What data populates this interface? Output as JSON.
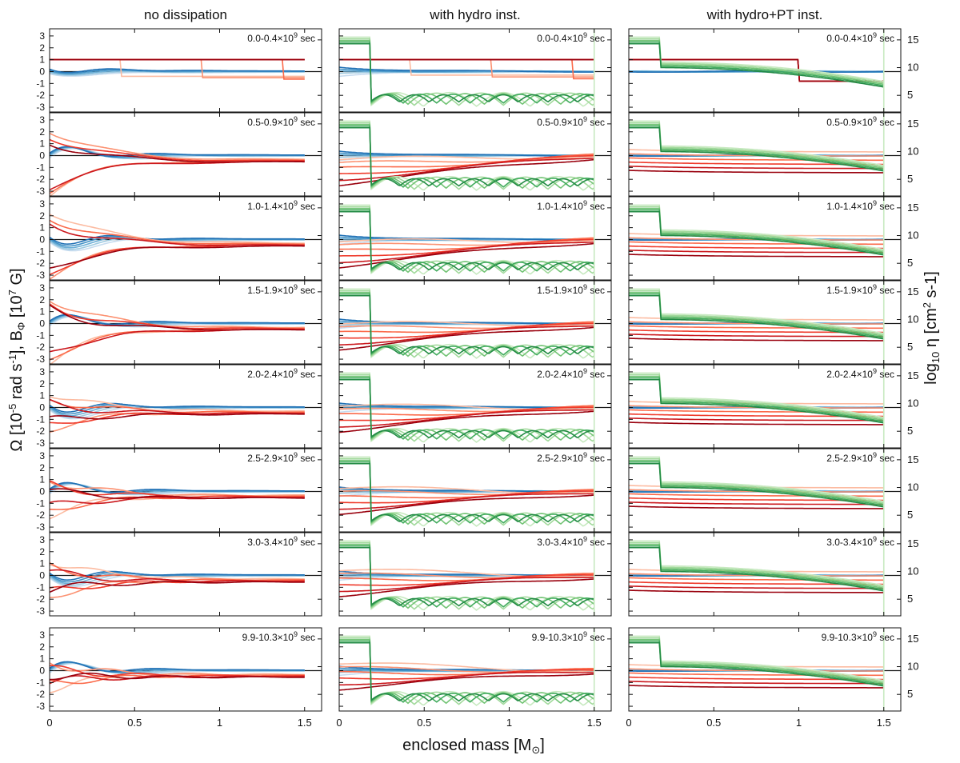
{
  "chart_data": {
    "type": "line",
    "columns": [
      "no dissipation",
      "with hydro inst.",
      "with hydro+PT inst."
    ],
    "rows": [
      {
        "label_main": "0.0-0.4×10",
        "label_exp": "9",
        "label_unit": " sec"
      },
      {
        "label_main": "0.5-0.9×10",
        "label_exp": "9",
        "label_unit": " sec"
      },
      {
        "label_main": "1.0-1.4×10",
        "label_exp": "9",
        "label_unit": " sec"
      },
      {
        "label_main": "1.5-1.9×10",
        "label_exp": "9",
        "label_unit": " sec"
      },
      {
        "label_main": "2.0-2.4×10",
        "label_exp": "9",
        "label_unit": " sec"
      },
      {
        "label_main": "2.5-2.9×10",
        "label_exp": "9",
        "label_unit": " sec"
      },
      {
        "label_main": "3.0-3.4×10",
        "label_exp": "9",
        "label_unit": " sec"
      },
      {
        "label_main": "9.9-10.3×10",
        "label_exp": "9",
        "label_unit": " sec"
      }
    ],
    "xlabel": {
      "main": "enclosed mass [M",
      "sub": "⊙",
      "end": "]"
    },
    "ylabel_left": {
      "p1": "Ω [10",
      "p1_exp": "-5",
      "p2": " rad s",
      "p2_exp": "-1",
      "p3": "],   B",
      "p3_sub": "Φ",
      "p4": " [10",
      "p4_exp": "7",
      "p5": " G]"
    },
    "ylabel_right": {
      "p1": "log",
      "p1_sub": "10",
      "p2": " η [cm",
      "p2_exp": "2",
      "p3": " s-1]"
    },
    "xlim": [
      0,
      1.6
    ],
    "xticks": [
      0,
      0.5,
      1,
      1.5
    ],
    "xtick_labels": [
      "0",
      "0.5",
      "1",
      "1.5"
    ],
    "ylim_left": [
      -3.4,
      3.6
    ],
    "yticks_left": [
      -3,
      -2,
      -1,
      0,
      1,
      2,
      3
    ],
    "ytick_labels_left": [
      "-3",
      "-2",
      "-1",
      "0",
      "1",
      "2",
      "3"
    ],
    "ylim_right": [
      2,
      17
    ],
    "yticks_right": [
      5,
      10,
      15
    ],
    "ytick_labels_right": [
      "5",
      "10",
      "15"
    ],
    "colors": {
      "reds": [
        "#fcbba1",
        "#fc9272",
        "#fb6a4a",
        "#ef3b2c",
        "#cb181d",
        "#99000d"
      ],
      "blues": [
        "#c6dbef",
        "#9ecae1",
        "#6baed6",
        "#4292c6",
        "#2171b5",
        "#08519c"
      ],
      "greens": [
        "#c7e9c0",
        "#a1d99b",
        "#74c476",
        "#41ab5d",
        "#238b45",
        "#00441b"
      ],
      "zero_line": "#1a1a1a"
    }
  }
}
